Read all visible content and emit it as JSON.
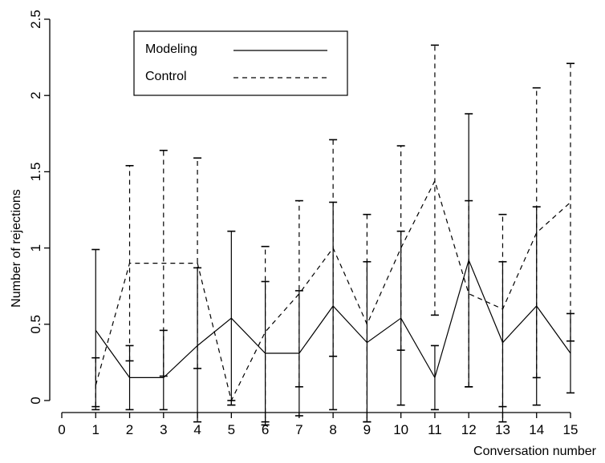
{
  "chart_data": {
    "type": "line",
    "xlabel": "Conversation number",
    "ylabel": "Number of rejections",
    "xlim": [
      0,
      15
    ],
    "ylim": [
      0,
      2.5
    ],
    "x_ticks": [
      "0",
      "1",
      "2",
      "3",
      "4",
      "5",
      "6",
      "7",
      "8",
      "9",
      "10",
      "11",
      "12",
      "13",
      "14",
      "15"
    ],
    "y_ticks": [
      "0",
      "0.5",
      "1",
      "1.5",
      "2",
      "2.5"
    ],
    "grid": false,
    "legend_position": "top-left",
    "series": [
      {
        "name": "Modeling",
        "style": "solid",
        "x": [
          1,
          2,
          3,
          4,
          5,
          6,
          7,
          8,
          9,
          10,
          11,
          12,
          13,
          14,
          15
        ],
        "y": [
          0.46,
          0.15,
          0.15,
          0.36,
          0.54,
          0.31,
          0.31,
          0.62,
          0.38,
          0.54,
          0.15,
          0.92,
          0.38,
          0.62,
          0.31
        ],
        "err_low": [
          -0.06,
          -0.06,
          -0.06,
          -0.14,
          -0.03,
          -0.16,
          -0.1,
          -0.06,
          -0.14,
          -0.03,
          -0.06,
          0.09,
          -0.14,
          -0.03,
          0.05
        ],
        "err_high": [
          0.99,
          0.36,
          0.46,
          0.87,
          1.11,
          0.78,
          0.72,
          1.3,
          0.91,
          1.11,
          0.36,
          1.88,
          0.91,
          1.27,
          0.57
        ]
      },
      {
        "name": "Control",
        "style": "dashed",
        "x": [
          1,
          2,
          3,
          4,
          5,
          6,
          7,
          8,
          9,
          10,
          11,
          12,
          13,
          14,
          15
        ],
        "y": [
          0.1,
          0.9,
          0.9,
          0.9,
          0.0,
          0.45,
          0.7,
          1.0,
          0.5,
          1.0,
          1.44,
          0.7,
          0.6,
          1.1,
          1.3
        ],
        "err_low": [
          -0.04,
          0.26,
          0.16,
          0.21,
          -0.03,
          -0.14,
          0.09,
          0.29,
          -0.14,
          0.33,
          0.56,
          0.09,
          -0.04,
          0.15,
          0.39
        ],
        "err_high": [
          0.28,
          1.54,
          1.64,
          1.59,
          0.0,
          1.01,
          1.31,
          1.71,
          1.22,
          1.67,
          2.33,
          1.31,
          1.22,
          2.05,
          2.21
        ]
      }
    ]
  },
  "colors": {
    "line": "#000000",
    "background": "#ffffff"
  }
}
